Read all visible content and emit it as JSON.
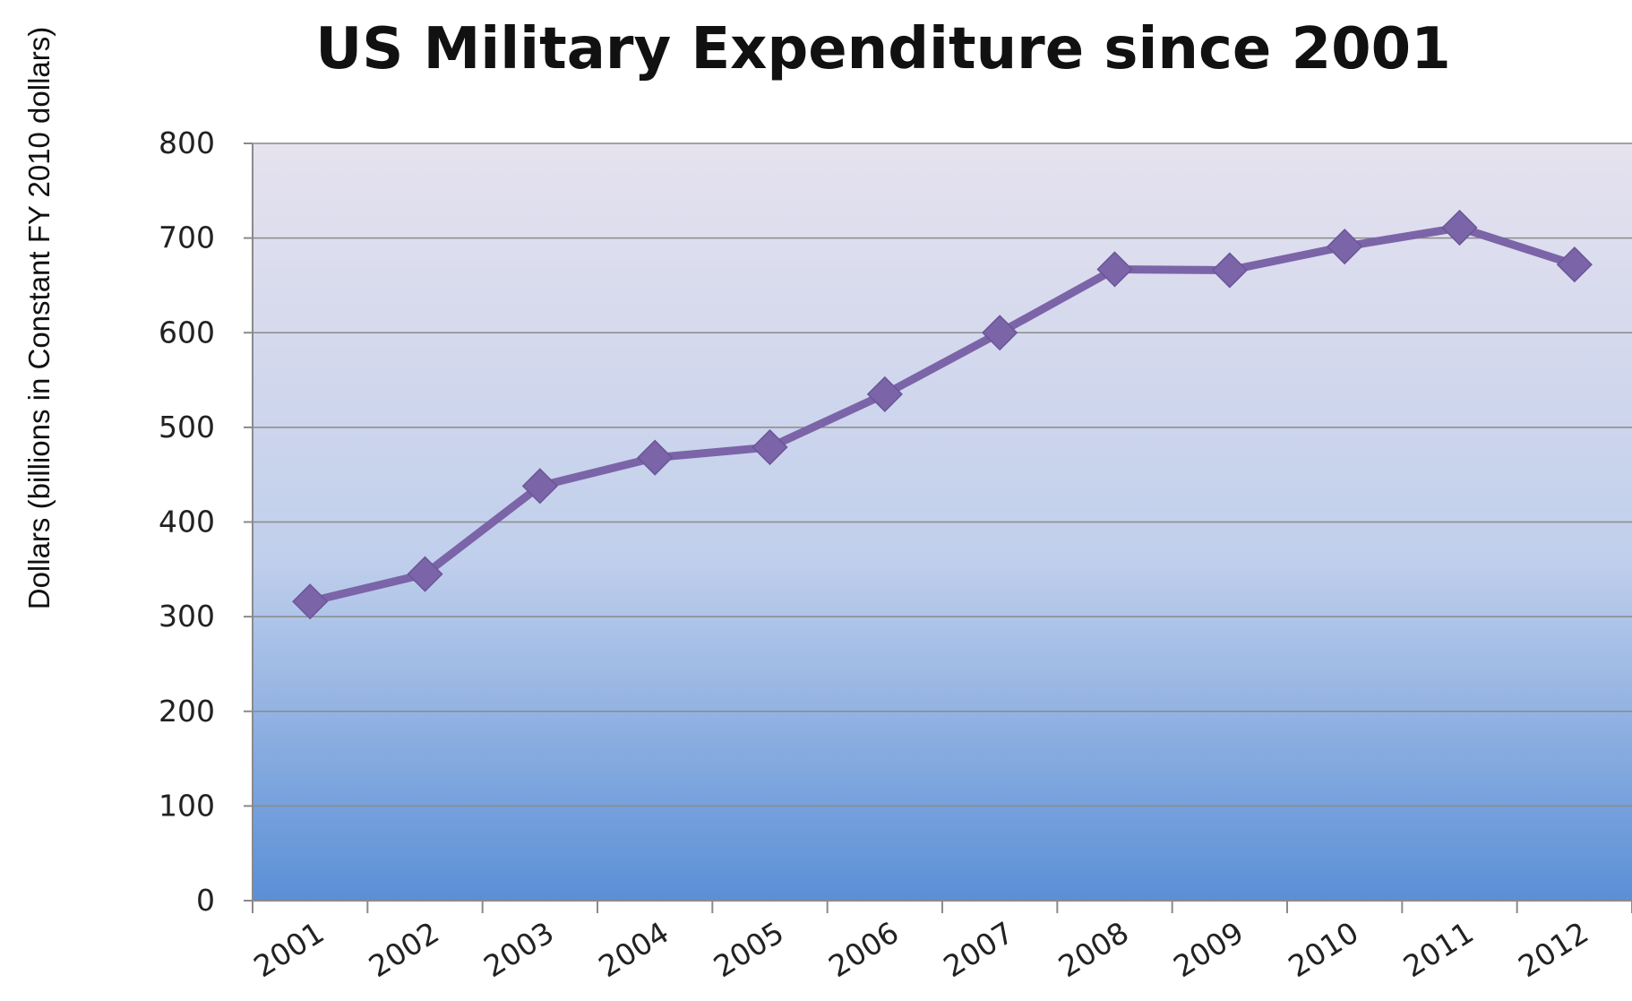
{
  "chart_data": {
    "type": "line",
    "title": "US Military Expenditure since 2001",
    "xlabel": "",
    "ylabel": "Dollars (billions in Constant FY 2010 dollars)",
    "categories": [
      "2001",
      "2002",
      "2003",
      "2004",
      "2005",
      "2006",
      "2007",
      "2008",
      "2009",
      "2010",
      "2011",
      "2012"
    ],
    "series": [
      {
        "values": [
          316,
          345,
          438,
          468,
          479,
          535,
          600,
          667,
          666,
          691,
          711,
          672
        ]
      }
    ],
    "ylim": [
      0,
      800
    ],
    "yticks": [
      "0",
      "100",
      "200",
      "300",
      "400",
      "500",
      "600",
      "700",
      "800"
    ],
    "grid": true,
    "legend": "none",
    "colors": {
      "line": "#7b64a8",
      "gridline": "#8a8a8a",
      "axis": "#8a8a8a",
      "background_top": "#e6e2ee",
      "background_bottom": "#5a8fd6"
    }
  }
}
